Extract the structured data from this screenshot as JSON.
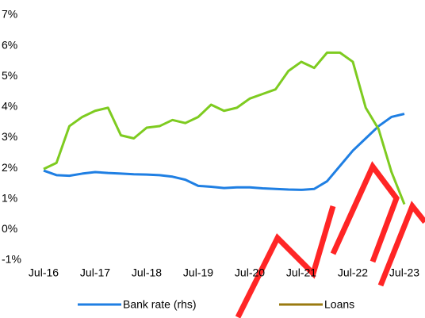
{
  "chart_data": {
    "type": "line",
    "categories": [
      "Jul-16",
      null,
      null,
      null,
      "Jul-17",
      null,
      null,
      null,
      "Jul-18",
      null,
      null,
      null,
      "Jul-19",
      null,
      null,
      null,
      "Jul-20",
      null,
      null,
      null,
      "Jul-21",
      null,
      null,
      null,
      "Jul-22",
      null,
      null,
      null,
      "Jul-23"
    ],
    "series": [
      {
        "name": "Bank rate (rhs)",
        "color": "#1f7fe3",
        "values": [
          1.95,
          1.8,
          1.78,
          1.85,
          1.9,
          1.87,
          1.85,
          1.83,
          1.82,
          1.8,
          1.75,
          1.65,
          1.45,
          1.42,
          1.38,
          1.4,
          1.4,
          1.37,
          1.35,
          1.33,
          1.32,
          1.35,
          1.6,
          2.1,
          2.6,
          3.0,
          3.4,
          3.7,
          3.8
        ]
      },
      {
        "name": "Loans",
        "color": "#7ecb20",
        "legend_color": "#9a7a10",
        "values": [
          2.0,
          2.2,
          3.4,
          3.7,
          3.9,
          4.0,
          3.1,
          3.0,
          3.35,
          3.4,
          3.6,
          3.5,
          3.7,
          4.1,
          3.9,
          4.0,
          4.3,
          4.45,
          4.6,
          5.2,
          5.5,
          5.3,
          5.8,
          5.8,
          5.5,
          4.0,
          3.3,
          1.9,
          0.85
        ]
      }
    ],
    "ylim": [
      -1,
      7
    ],
    "yticks": [
      {
        "value": -1,
        "label": "-1%"
      },
      {
        "value": 0,
        "label": "0%"
      },
      {
        "value": 1,
        "label": "1%"
      },
      {
        "value": 2,
        "label": "2%"
      },
      {
        "value": 3,
        "label": "3%"
      },
      {
        "value": 4,
        "label": "4%"
      },
      {
        "value": 5,
        "label": "5%"
      },
      {
        "value": 6,
        "label": "6%"
      },
      {
        "value": 7,
        "label": "7%"
      }
    ],
    "grid": false
  }
}
